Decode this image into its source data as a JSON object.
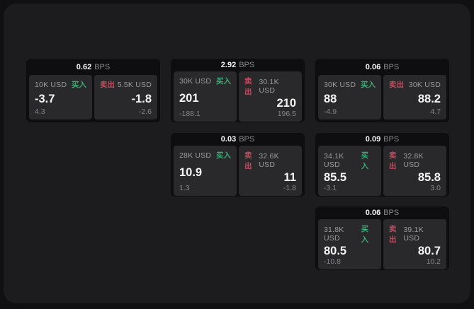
{
  "labels": {
    "buy": "买入",
    "sell": "卖出",
    "bps_unit": "BPS"
  },
  "colors": {
    "buy_green": "#3cab76",
    "sell_red": "#c54a5f",
    "panel_background": "#29292b",
    "card_background": "#0e0e10"
  },
  "cards": [
    {
      "bps": "0.62",
      "row": 1,
      "col": 1,
      "buy": {
        "amount": "10K USD",
        "value": "-3.7",
        "delta": "4.3"
      },
      "sell": {
        "amount": "5.5K USD",
        "value": "-1.8",
        "delta": "-2.6"
      }
    },
    {
      "bps": "2.92",
      "row": 1,
      "col": 2,
      "buy": {
        "amount": "30K USD",
        "value": "201",
        "delta": "-188.1"
      },
      "sell": {
        "amount": "30.1K USD",
        "value": "210",
        "delta": "196.5"
      }
    },
    {
      "bps": "0.06",
      "row": 1,
      "col": 3,
      "buy": {
        "amount": "30K USD",
        "value": "88",
        "delta": "-4.9"
      },
      "sell": {
        "amount": "30K USD",
        "value": "88.2",
        "delta": "4.7"
      }
    },
    {
      "bps": "0.03",
      "row": 2,
      "col": 2,
      "buy": {
        "amount": "28K USD",
        "value": "10.9",
        "delta": "1.3"
      },
      "sell": {
        "amount": "32.6K USD",
        "value": "11",
        "delta": "-1.8"
      }
    },
    {
      "bps": "0.09",
      "row": 2,
      "col": 3,
      "buy": {
        "amount": "34.1K USD",
        "value": "85.5",
        "delta": "-3.1"
      },
      "sell": {
        "amount": "32.8K USD",
        "value": "85.8",
        "delta": "3.0"
      }
    },
    {
      "bps": "0.06",
      "row": 3,
      "col": 3,
      "buy": {
        "amount": "31.8K USD",
        "value": "80.5",
        "delta": "-10.8"
      },
      "sell": {
        "amount": "39.1K USD",
        "value": "80.7",
        "delta": "10.2"
      }
    }
  ]
}
